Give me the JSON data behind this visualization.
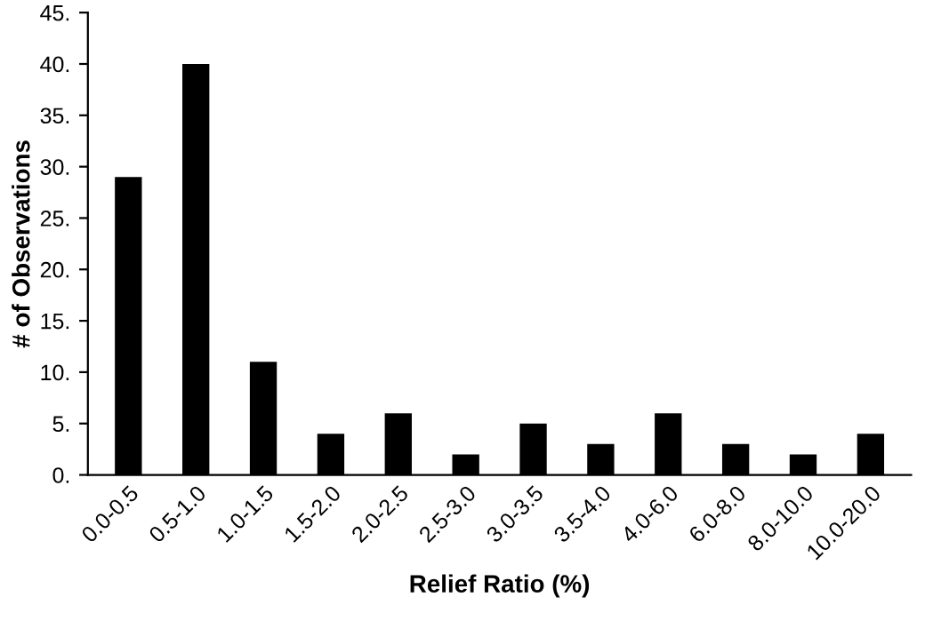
{
  "chart_data": {
    "type": "bar",
    "xlabel": "Relief Ratio (%)",
    "ylabel": "# of Observations",
    "categories": [
      "0.0-0.5",
      "0.5-1.0",
      "1.0-1.5",
      "1.5-2.0",
      "2.0-2.5",
      "2.5-3.0",
      "3.0-3.5",
      "3.5-4.0",
      "4.0-6.0",
      "6.0-8.0",
      "8.0-10.0",
      "10.0-20.0"
    ],
    "values": [
      29,
      40,
      11,
      4,
      6,
      2,
      5,
      3,
      6,
      3,
      2,
      4
    ],
    "color": "#000000",
    "ylim": [
      0,
      45
    ],
    "yticks": [
      {
        "value": 0,
        "label": "0."
      },
      {
        "value": 5,
        "label": "5."
      },
      {
        "value": 10,
        "label": "10."
      },
      {
        "value": 15,
        "label": "15."
      },
      {
        "value": 20,
        "label": "20."
      },
      {
        "value": 25,
        "label": "25."
      },
      {
        "value": 30,
        "label": "30."
      },
      {
        "value": 35,
        "label": "35."
      },
      {
        "value": 40,
        "label": "40."
      },
      {
        "value": 45,
        "label": "45."
      }
    ],
    "grid": false,
    "legend": false
  }
}
